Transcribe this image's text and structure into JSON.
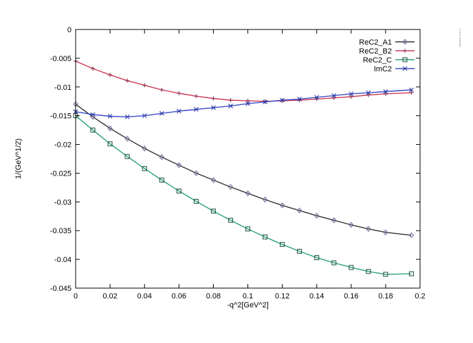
{
  "chart_data": {
    "type": "line",
    "title": "",
    "xlabel": "-q^2[GeV^2]",
    "ylabel": "1/(GeV^1/2)",
    "xlim": [
      0,
      0.2
    ],
    "ylim": [
      -0.045,
      0
    ],
    "xticks": [
      "0",
      "0.02",
      "0.04",
      "0.06",
      "0.08",
      "0.1",
      "0.12",
      "0.14",
      "0.16",
      "0.18",
      "0.2"
    ],
    "yticks": [
      "0",
      "-0.005",
      "-0.01",
      "-0.015",
      "-0.02",
      "-0.025",
      "-0.03",
      "-0.035",
      "-0.04",
      "-0.045"
    ],
    "grid": false,
    "legend_position": "top-right",
    "series": [
      {
        "name": "ReC2_A1",
        "color": "#333333",
        "marker_color": "#7a6a9a",
        "marker": "diamond",
        "x": [
          0,
          0.01,
          0.02,
          0.03,
          0.04,
          0.05,
          0.06,
          0.07,
          0.08,
          0.09,
          0.1,
          0.11,
          0.12,
          0.13,
          0.14,
          0.15,
          0.16,
          0.17,
          0.18,
          0.195
        ],
        "y": [
          -0.013,
          -0.0152,
          -0.0172,
          -0.019,
          -0.0207,
          -0.0222,
          -0.0236,
          -0.025,
          -0.0262,
          -0.0274,
          -0.0285,
          -0.0296,
          -0.0306,
          -0.0315,
          -0.0324,
          -0.0332,
          -0.034,
          -0.0347,
          -0.0353,
          -0.0358
        ]
      },
      {
        "name": "ReC2_B2",
        "color": "#cc3a55",
        "marker_color": "#8a3050",
        "marker": "plus",
        "x": [
          0,
          0.01,
          0.02,
          0.03,
          0.04,
          0.05,
          0.06,
          0.07,
          0.08,
          0.09,
          0.1,
          0.11,
          0.12,
          0.13,
          0.14,
          0.15,
          0.16,
          0.17,
          0.18,
          0.195
        ],
        "y": [
          -0.0055,
          -0.0068,
          -0.0079,
          -0.0089,
          -0.0097,
          -0.0105,
          -0.0111,
          -0.0116,
          -0.012,
          -0.0123,
          -0.0124,
          -0.0125,
          -0.0124,
          -0.0123,
          -0.0121,
          -0.0119,
          -0.0117,
          -0.0114,
          -0.0112,
          -0.011
        ]
      },
      {
        "name": "ReC2_C",
        "color": "#2aa080",
        "marker_color": "#2a5a40",
        "marker": "square",
        "x": [
          0,
          0.01,
          0.02,
          0.03,
          0.04,
          0.05,
          0.06,
          0.07,
          0.08,
          0.09,
          0.1,
          0.11,
          0.12,
          0.13,
          0.14,
          0.15,
          0.16,
          0.17,
          0.18,
          0.195
        ],
        "y": [
          -0.015,
          -0.0175,
          -0.0199,
          -0.0221,
          -0.0242,
          -0.0262,
          -0.0281,
          -0.0299,
          -0.0316,
          -0.0332,
          -0.0347,
          -0.0361,
          -0.0374,
          -0.0386,
          -0.0397,
          -0.0406,
          -0.0414,
          -0.0421,
          -0.0426,
          -0.0425
        ]
      },
      {
        "name": "ImC2",
        "color": "#3a4ac8",
        "marker_color": "#2a3aa0",
        "marker": "x",
        "x": [
          0,
          0.01,
          0.02,
          0.03,
          0.04,
          0.05,
          0.06,
          0.07,
          0.08,
          0.09,
          0.1,
          0.11,
          0.12,
          0.13,
          0.14,
          0.15,
          0.16,
          0.17,
          0.18,
          0.195
        ],
        "y": [
          -0.0143,
          -0.0148,
          -0.0151,
          -0.0152,
          -0.015,
          -0.0146,
          -0.0142,
          -0.0139,
          -0.0136,
          -0.0133,
          -0.0129,
          -0.0126,
          -0.0123,
          -0.0121,
          -0.0118,
          -0.0115,
          -0.0112,
          -0.011,
          -0.0108,
          -0.0105
        ]
      }
    ]
  },
  "margin_note": "2010/05/06  16:42:37"
}
